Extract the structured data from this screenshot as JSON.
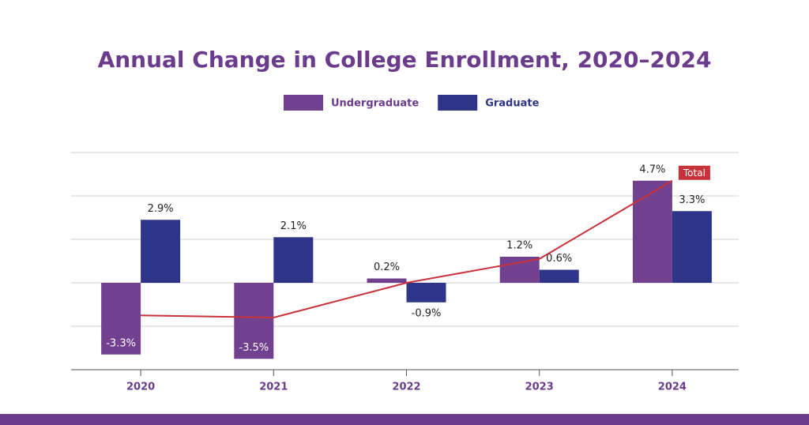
{
  "chart_data": {
    "type": "bar",
    "title": "Annual Change in College Enrollment, 2020–2024",
    "categories": [
      "2020",
      "2021",
      "2022",
      "2023",
      "2024"
    ],
    "series": [
      {
        "name": "Undergraduate",
        "type": "bar",
        "color": "#71418f",
        "values": [
          -3.3,
          -3.5,
          0.2,
          1.2,
          4.7
        ],
        "value_labels": [
          "-3.3%",
          "-3.5%",
          "0.2%",
          "1.2%",
          "4.7%"
        ]
      },
      {
        "name": "Graduate",
        "type": "bar",
        "color": "#2e3589",
        "values": [
          2.9,
          2.1,
          -0.9,
          0.6,
          3.3
        ],
        "value_labels": [
          "2.9%",
          "2.1%",
          "-0.9%",
          "0.6%",
          "3.3%"
        ]
      },
      {
        "name": "Total",
        "type": "line",
        "color": "#c8323a",
        "values": [
          -1.5,
          -1.6,
          0,
          1.1,
          4.7
        ]
      }
    ],
    "ylim": [
      -4,
      6
    ],
    "yticks": [
      -4,
      -2,
      0,
      2,
      4,
      6
    ],
    "grid": true
  }
}
